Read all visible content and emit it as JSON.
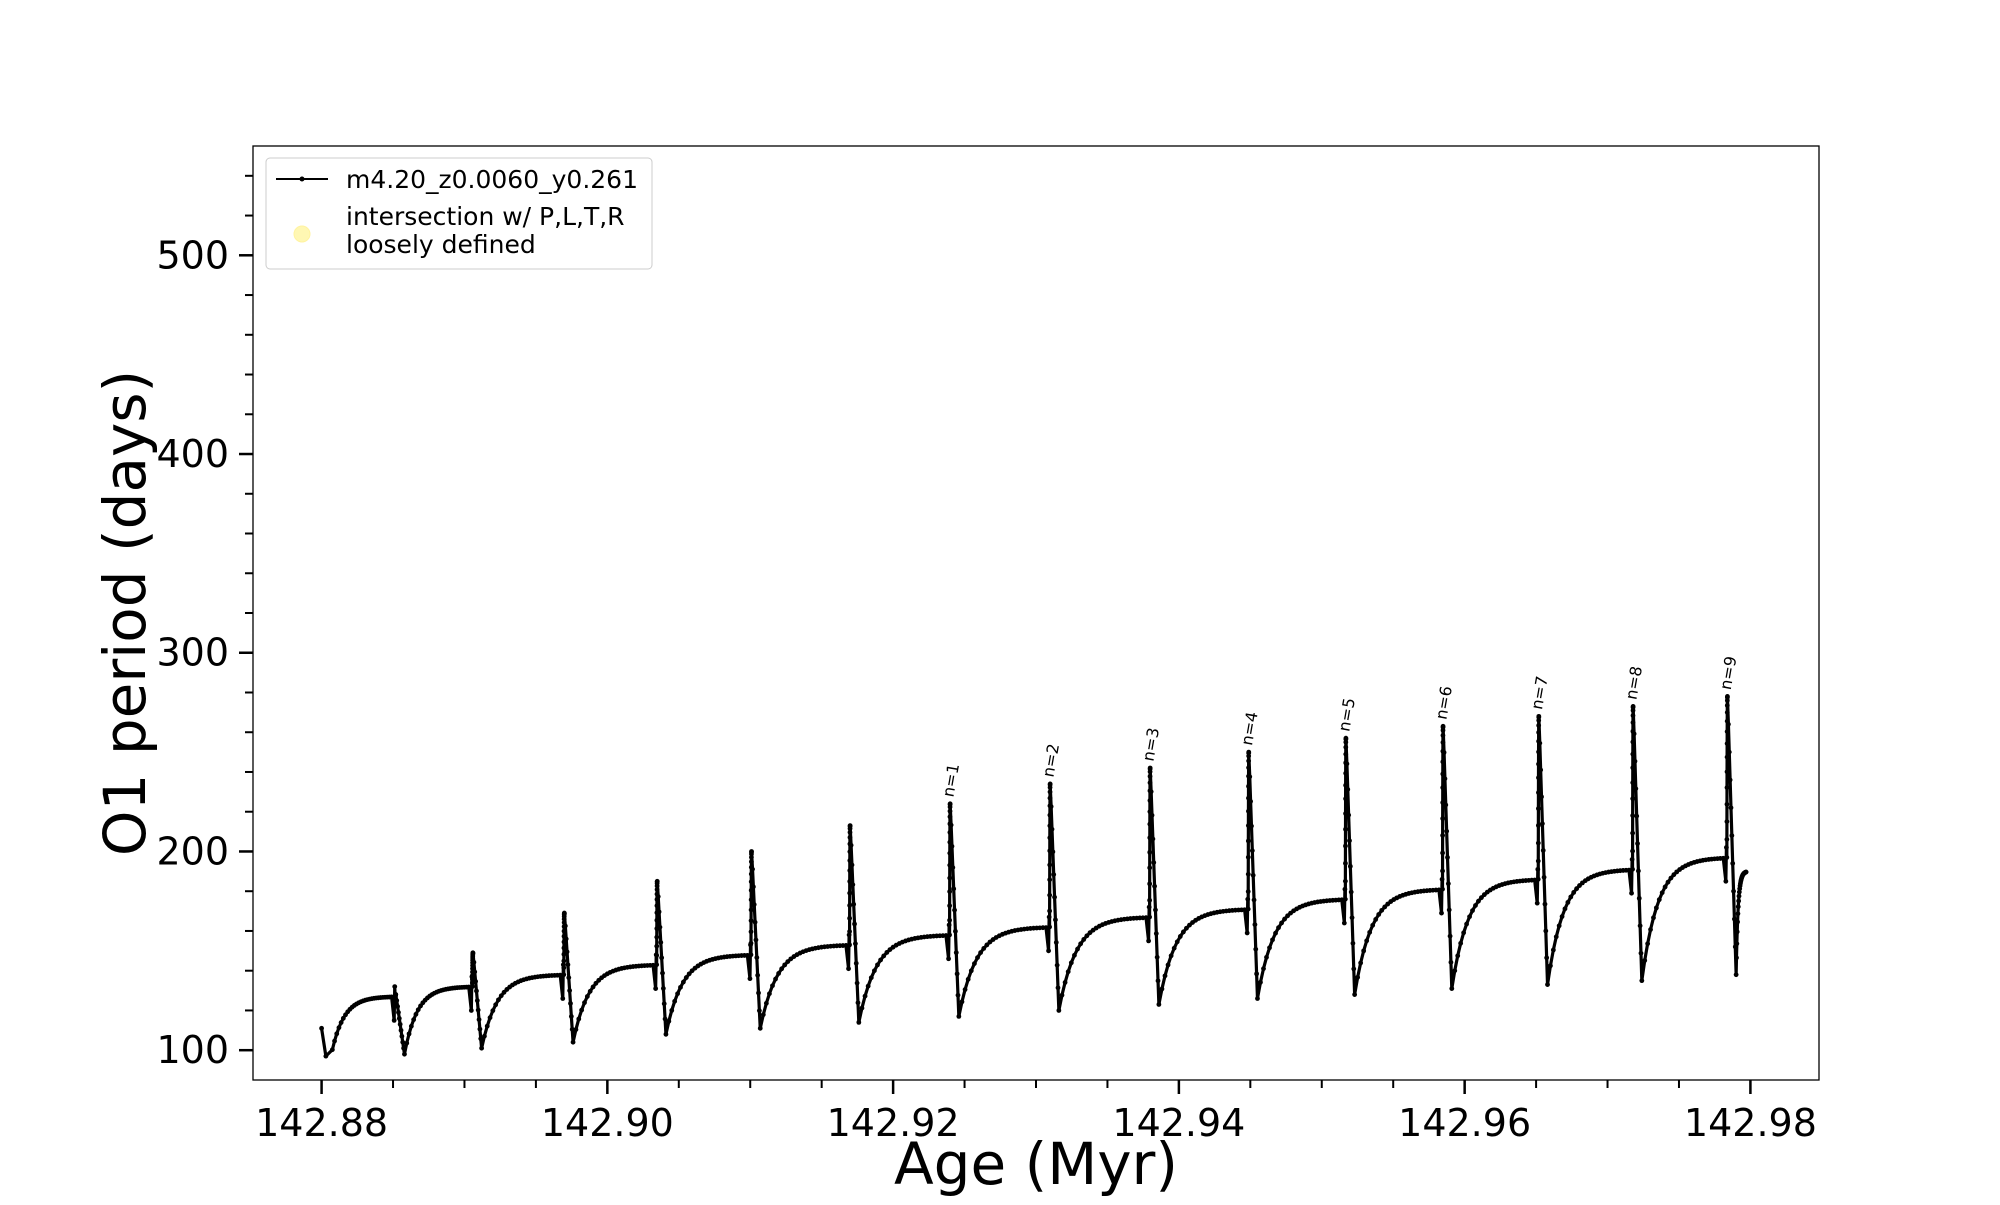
{
  "chart_data": {
    "type": "line",
    "xlabel": "Age (Myr)",
    "ylabel": "O1 period (days)",
    "xlim": [
      142.8752,
      142.9848
    ],
    "ylim": [
      85,
      555
    ],
    "x_ticks": [
      142.88,
      142.9,
      142.92,
      142.94,
      142.96,
      142.98
    ],
    "x_tick_labels": [
      "142.88",
      "142.90",
      "142.92",
      "142.94",
      "142.96",
      "142.98"
    ],
    "y_ticks": [
      100,
      200,
      300,
      400,
      500
    ],
    "y_tick_labels": [
      "100",
      "200",
      "300",
      "400",
      "500"
    ],
    "grid": false,
    "legend": {
      "placement": "top-left",
      "entries": [
        {
          "label": "m4.20_z0.0060_y0.261",
          "marker": "line-with-dots",
          "color": "#000000"
        },
        {
          "label_line1": "intersection w/ P,L,T,R",
          "label_line2": "loosely defined",
          "marker": "circle",
          "color": "#fff7b3"
        }
      ]
    },
    "series": [
      {
        "name": "m4.20_z0.0060_y0.261",
        "color": "#000000",
        "cycles": [
          {
            "start": 142.88,
            "end": 142.8852,
            "spike_peak": 128,
            "min": 95,
            "plateau": 127
          },
          {
            "start": 142.8852,
            "end": 142.8906,
            "spike_peak": 149,
            "min": 98,
            "plateau": 132
          },
          {
            "start": 142.8906,
            "end": 142.897,
            "spike_peak": 169,
            "min": 101,
            "plateau": 138
          },
          {
            "start": 142.897,
            "end": 142.9035,
            "spike_peak": 185,
            "min": 104,
            "plateau": 143
          },
          {
            "start": 142.9035,
            "end": 142.9101,
            "spike_peak": 200,
            "min": 108,
            "plateau": 148
          },
          {
            "start": 142.9101,
            "end": 142.917,
            "spike_peak": 213,
            "min": 111,
            "plateau": 153
          },
          {
            "start": 142.917,
            "end": 142.924,
            "spike_peak": 224,
            "min": 114,
            "plateau": 158,
            "label": "n=1"
          },
          {
            "start": 142.924,
            "end": 142.931,
            "spike_peak": 234,
            "min": 117,
            "plateau": 162,
            "label": "n=2"
          },
          {
            "start": 142.931,
            "end": 142.938,
            "spike_peak": 242,
            "min": 120,
            "plateau": 167,
            "label": "n=3"
          },
          {
            "start": 142.938,
            "end": 142.9449,
            "spike_peak": 250,
            "min": 123,
            "plateau": 171,
            "label": "n=4"
          },
          {
            "start": 142.9449,
            "end": 142.9517,
            "spike_peak": 257,
            "min": 126,
            "plateau": 176,
            "label": "n=5"
          },
          {
            "start": 142.9517,
            "end": 142.9585,
            "spike_peak": 263,
            "min": 128,
            "plateau": 181,
            "label": "n=6"
          },
          {
            "start": 142.9585,
            "end": 142.9652,
            "spike_peak": 268,
            "min": 131,
            "plateau": 186,
            "label": "n=7"
          },
          {
            "start": 142.9652,
            "end": 142.9718,
            "spike_peak": 273,
            "min": 133,
            "plateau": 191,
            "label": "n=8"
          },
          {
            "start": 142.9718,
            "end": 142.9784,
            "spike_peak": 278,
            "min": 135,
            "plateau": 197,
            "label": "n=9"
          },
          {
            "start": 142.9784,
            "end": 142.98,
            "spike_peak": null,
            "min": 138,
            "plateau": 190
          }
        ],
        "initial_point": {
          "x": 142.88,
          "y": 111
        }
      }
    ],
    "annotations": [
      "n=1",
      "n=2",
      "n=3",
      "n=4",
      "n=5",
      "n=6",
      "n=7",
      "n=8",
      "n=9"
    ]
  }
}
